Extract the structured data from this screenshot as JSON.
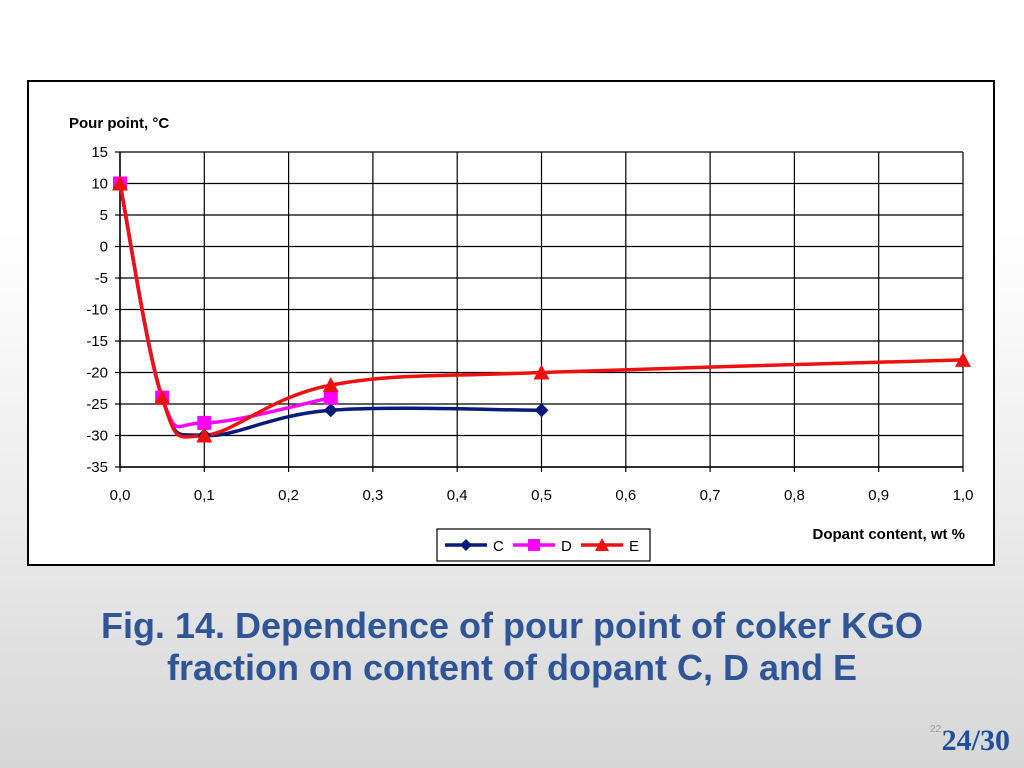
{
  "caption": {
    "line1": "Fig. 14. Dependence of pour point of coker KGO",
    "line2": "fraction on content of dopant C, D and E"
  },
  "page_counter": "24/30",
  "slide_number": "22",
  "chart_data": {
    "type": "line",
    "title": "",
    "ylabel": "Pour point, °C",
    "xlabel": "Dopant content, wt %",
    "xlim": [
      0,
      1.0
    ],
    "ylim": [
      -35,
      15
    ],
    "x_ticks": [
      "0,0",
      "0,1",
      "0,2",
      "0,3",
      "0,4",
      "0,5",
      "0,6",
      "0,7",
      "0,8",
      "0,9",
      "1,0"
    ],
    "y_ticks": [
      "15",
      "10",
      "5",
      "0",
      "-5",
      "-10",
      "-15",
      "-20",
      "-25",
      "-30",
      "-35"
    ],
    "grid": true,
    "legend_position": "bottom-center",
    "series": [
      {
        "name": "C",
        "color": "#0a1a7a",
        "marker": "diamond",
        "x": [
          0.0,
          0.05,
          0.1,
          0.25,
          0.5
        ],
        "y": [
          10,
          -24,
          -30,
          -26,
          -26
        ]
      },
      {
        "name": "D",
        "color": "#ff00ff",
        "marker": "square",
        "x": [
          0.0,
          0.05,
          0.1,
          0.25
        ],
        "y": [
          10,
          -24,
          -28,
          -24
        ]
      },
      {
        "name": "E",
        "color": "#ee1111",
        "marker": "triangle",
        "x": [
          0.0,
          0.05,
          0.1,
          0.25,
          0.5,
          1.0
        ],
        "y": [
          10,
          -24,
          -30,
          -22,
          -20,
          -18
        ]
      }
    ]
  }
}
